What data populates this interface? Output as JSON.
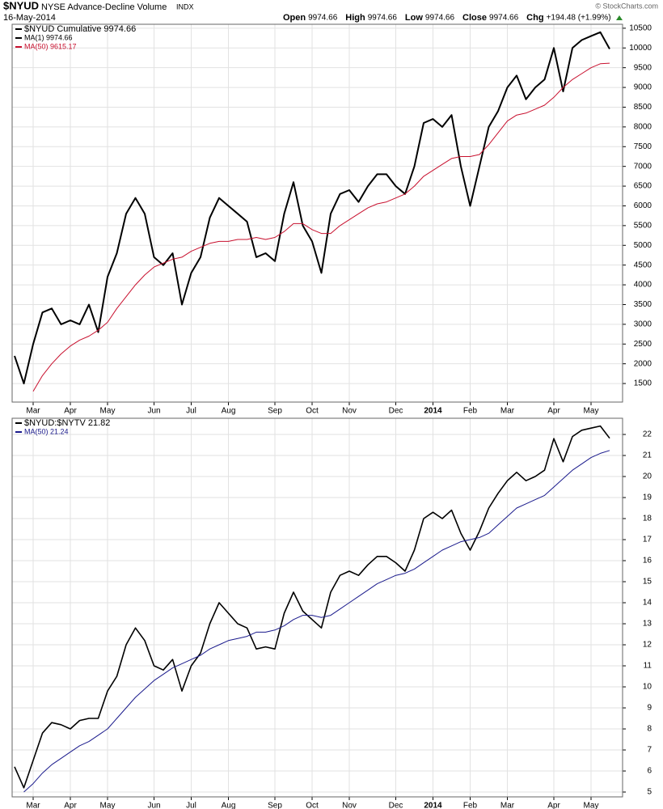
{
  "header": {
    "symbol": "$NYUD",
    "name": "NYSE Advance-Decline Volume",
    "exchange": "INDX",
    "date": "16-May-2014",
    "quote": [
      {
        "label": "Open",
        "value": "9974.66"
      },
      {
        "label": "High",
        "value": "9974.66"
      },
      {
        "label": "Low",
        "value": "9974.66"
      },
      {
        "label": "Close",
        "value": "9974.66"
      },
      {
        "label": "Chg",
        "value": "+194.48 (+1.99%)"
      }
    ],
    "credit": "© StockCharts.com"
  },
  "chart_data": [
    {
      "type": "line",
      "title": "$NYUD Cumulative 9974.66",
      "categories": [
        null,
        null,
        "Mar",
        null,
        null,
        null,
        "Apr",
        null,
        null,
        null,
        "May",
        null,
        null,
        null,
        null,
        "Jun",
        null,
        null,
        null,
        "Jul",
        null,
        null,
        null,
        "Aug",
        null,
        null,
        null,
        null,
        "Sep",
        null,
        null,
        null,
        "Oct",
        null,
        null,
        null,
        "Nov",
        null,
        null,
        null,
        null,
        "Dec",
        null,
        null,
        null,
        "2014",
        null,
        null,
        null,
        "Feb",
        null,
        null,
        null,
        "Mar",
        null,
        null,
        null,
        null,
        "Apr",
        null,
        null,
        null,
        "May",
        null,
        null
      ],
      "series": [
        {
          "name": "MA(1) 9974.66",
          "color": "#000000",
          "width": 2,
          "values": [
            2200,
            1500,
            2500,
            3300,
            3400,
            3000,
            3100,
            3000,
            3500,
            2800,
            4200,
            4800,
            5800,
            6200,
            5800,
            4700,
            4500,
            4800,
            3500,
            4300,
            4700,
            5700,
            6200,
            6000,
            5800,
            5600,
            4700,
            4800,
            4600,
            5800,
            6600,
            5500,
            5100,
            4300,
            5800,
            6300,
            6400,
            6100,
            6500,
            6800,
            6800,
            6500,
            6300,
            7000,
            8100,
            8200,
            8000,
            8300,
            7000,
            6000,
            7000,
            8000,
            8400,
            9000,
            9300,
            8700,
            9000,
            9200,
            10000,
            8900,
            10000,
            10200,
            10300,
            10400,
            9974.66
          ]
        },
        {
          "name": "MA(50) 9615.17",
          "color": "#c8102e",
          "width": 1,
          "values": [
            null,
            null,
            1300,
            1700,
            2000,
            2250,
            2450,
            2600,
            2700,
            2850,
            3050,
            3400,
            3700,
            4000,
            4250,
            4450,
            4550,
            4650,
            4700,
            4850,
            4950,
            5050,
            5100,
            5100,
            5150,
            5150,
            5200,
            5150,
            5200,
            5350,
            5550,
            5550,
            5400,
            5300,
            5300,
            5500,
            5650,
            5800,
            5950,
            6050,
            6100,
            6200,
            6300,
            6500,
            6750,
            6900,
            7050,
            7200,
            7250,
            7250,
            7300,
            7550,
            7850,
            8150,
            8300,
            8350,
            8450,
            8550,
            8750,
            9000,
            9200,
            9350,
            9500,
            9600,
            9615.17
          ]
        }
      ],
      "ylim": [
        1030,
        10600
      ],
      "yticks": [
        1500,
        2000,
        2500,
        3000,
        3500,
        4000,
        4500,
        5000,
        5500,
        6000,
        6500,
        7000,
        7500,
        8000,
        8500,
        9000,
        9500,
        10000,
        10500
      ],
      "grid": true
    },
    {
      "type": "line",
      "title": "$NYUD:$NYTV 21.82",
      "categories": [
        null,
        null,
        "Mar",
        null,
        null,
        null,
        "Apr",
        null,
        null,
        null,
        "May",
        null,
        null,
        null,
        null,
        "Jun",
        null,
        null,
        null,
        "Jul",
        null,
        null,
        null,
        "Aug",
        null,
        null,
        null,
        null,
        "Sep",
        null,
        null,
        null,
        "Oct",
        null,
        null,
        null,
        "Nov",
        null,
        null,
        null,
        null,
        "Dec",
        null,
        null,
        null,
        "2014",
        null,
        null,
        null,
        "Feb",
        null,
        null,
        null,
        "Mar",
        null,
        null,
        null,
        null,
        "Apr",
        null,
        null,
        null,
        "May",
        null,
        null
      ],
      "series": [
        {
          "color": "#000000",
          "width": 1.6,
          "values": [
            6.2,
            5.2,
            6.5,
            7.8,
            8.3,
            8.2,
            8.0,
            8.4,
            8.5,
            8.5,
            9.8,
            10.5,
            12.0,
            12.8,
            12.2,
            11.0,
            10.8,
            11.3,
            9.8,
            11.0,
            11.6,
            13.0,
            14.0,
            13.5,
            13.0,
            12.8,
            11.8,
            11.9,
            11.8,
            13.5,
            14.5,
            13.6,
            13.2,
            12.8,
            14.5,
            15.3,
            15.5,
            15.3,
            15.8,
            16.2,
            16.2,
            15.9,
            15.5,
            16.5,
            18.0,
            18.3,
            18.0,
            18.4,
            17.3,
            16.5,
            17.4,
            18.5,
            19.2,
            19.8,
            20.2,
            19.8,
            20.0,
            20.3,
            21.8,
            20.7,
            21.9,
            22.2,
            22.3,
            22.4,
            21.82
          ]
        },
        {
          "name": "MA(50) 21.24",
          "color": "#1a1a8c",
          "width": 1,
          "values": [
            null,
            5.0,
            5.4,
            5.9,
            6.3,
            6.6,
            6.9,
            7.2,
            7.4,
            7.7,
            8.0,
            8.5,
            9.0,
            9.5,
            9.9,
            10.3,
            10.6,
            10.9,
            11.1,
            11.3,
            11.5,
            11.8,
            12.0,
            12.2,
            12.3,
            12.4,
            12.6,
            12.6,
            12.7,
            12.9,
            13.2,
            13.4,
            13.4,
            13.3,
            13.4,
            13.7,
            14.0,
            14.3,
            14.6,
            14.9,
            15.1,
            15.3,
            15.4,
            15.6,
            15.9,
            16.2,
            16.5,
            16.7,
            16.9,
            17.0,
            17.1,
            17.3,
            17.7,
            18.1,
            18.5,
            18.7,
            18.9,
            19.1,
            19.5,
            19.9,
            20.3,
            20.6,
            20.9,
            21.1,
            21.24
          ]
        }
      ],
      "ylim": [
        4.77,
        22.77
      ],
      "yticks": [
        5,
        6,
        7,
        8,
        9,
        10,
        11,
        12,
        13,
        14,
        15,
        16,
        17,
        18,
        19,
        20,
        21,
        22
      ],
      "grid": true
    }
  ]
}
